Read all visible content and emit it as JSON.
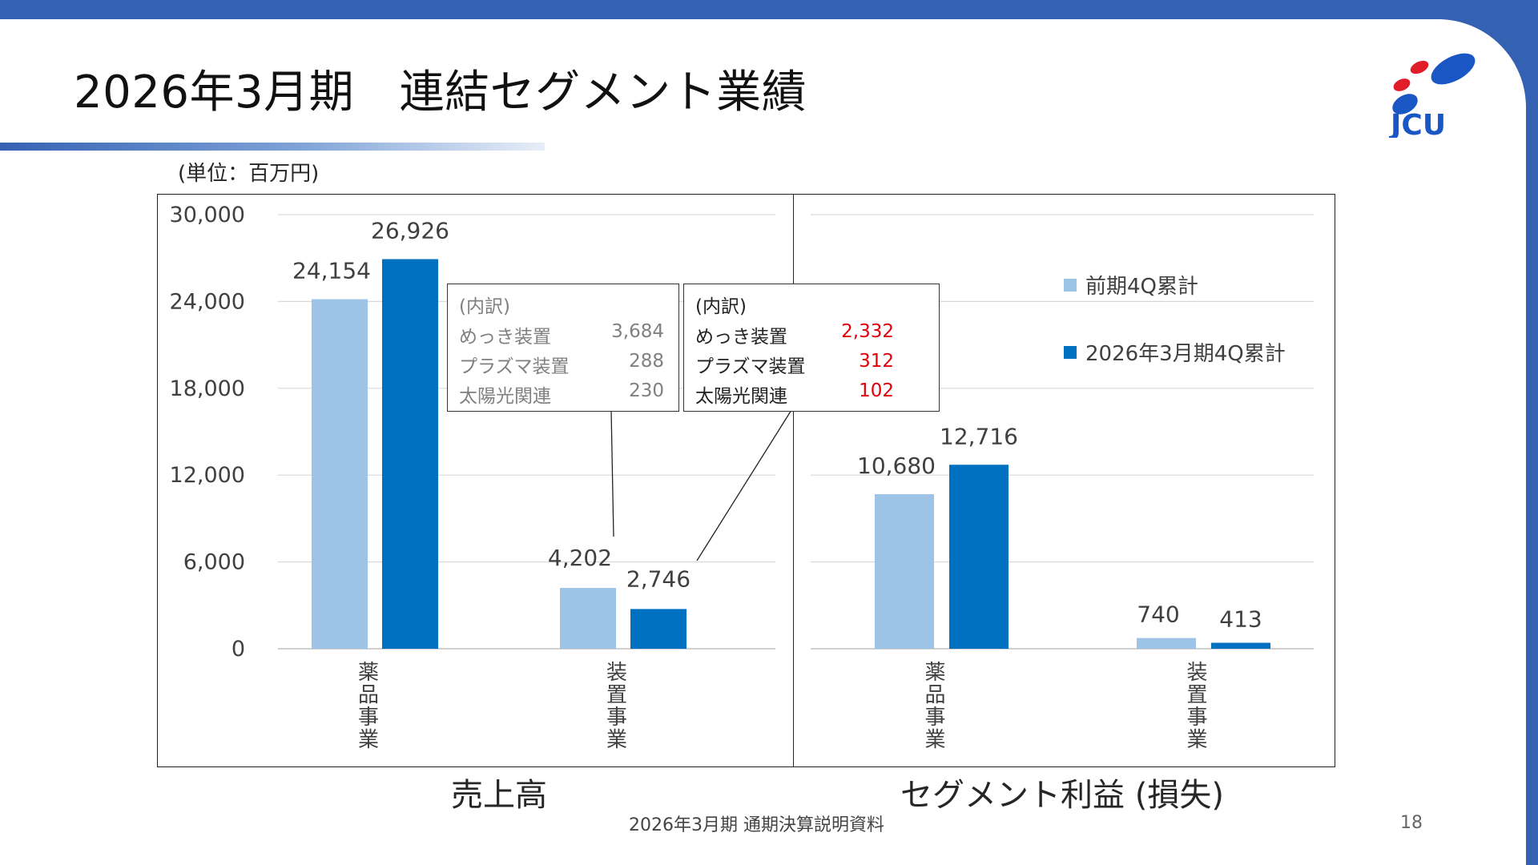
{
  "slide": {
    "title": "2026年3月期　連結セグメント業績",
    "unit": "(単位：百万円)",
    "footer": "2026年3月期 通期決算説明資料",
    "page_number": "18",
    "logo_text": "JCU",
    "colors": {
      "band": "#3561b3",
      "prev": "#9dc3e6",
      "curr": "#0070c0",
      "highlight": "#e0000a"
    }
  },
  "chart_data": [
    {
      "type": "bar",
      "title": "売上高",
      "categories": [
        "薬品事業",
        "装置事業"
      ],
      "series": [
        {
          "name": "前期4Q累計",
          "values": [
            24154,
            4202
          ]
        },
        {
          "name": "2026年3月期4Q累計",
          "values": [
            26926,
            2746
          ]
        }
      ],
      "data_labels": [
        [
          "24,154",
          "4,202"
        ],
        [
          "26,926",
          "2,746"
        ]
      ],
      "yticks": [
        "30,000",
        "24,000",
        "18,000",
        "12,000",
        "6,000",
        "0"
      ],
      "ylim": [
        0,
        30000
      ],
      "grid": true
    },
    {
      "type": "bar",
      "title": "セグメント利益 (損失)",
      "categories": [
        "薬品事業",
        "装置事業"
      ],
      "series": [
        {
          "name": "前期4Q累計",
          "values": [
            10680,
            740
          ]
        },
        {
          "name": "2026年3月期4Q累計",
          "values": [
            12716,
            413
          ]
        }
      ],
      "data_labels": [
        [
          "10,680",
          "740"
        ],
        [
          "12,716",
          "413"
        ]
      ],
      "ylim": [
        0,
        30000
      ],
      "grid": true,
      "legend": "top-right"
    }
  ],
  "breakdown": {
    "header": "(内訳)",
    "previous": [
      {
        "name": "めっき装置",
        "value": "3,684"
      },
      {
        "name": "プラズマ装置",
        "value": "288"
      },
      {
        "name": "太陽光関連",
        "value": "230"
      }
    ],
    "current": [
      {
        "name": "めっき装置",
        "value": "2,332"
      },
      {
        "name": "プラズマ装置",
        "value": "312"
      },
      {
        "name": "太陽光関連",
        "value": "102"
      }
    ]
  }
}
